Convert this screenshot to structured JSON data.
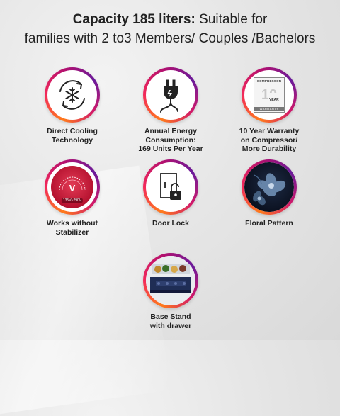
{
  "headline": {
    "bold": "Capacity 185 liters:",
    "rest": " Suitable for",
    "line2": "families with 2 to3 Members/ Couples /Bachelors"
  },
  "features": [
    {
      "icon": "snowflake-cycle-icon",
      "lines": [
        "Direct Cooling",
        "Technology"
      ]
    },
    {
      "icon": "power-plug-icon",
      "lines": [
        "Annual Energy",
        "Consumption:",
        "169 Units Per Year"
      ]
    },
    {
      "icon": "warranty-badge-icon",
      "lines": [
        "10 Year Warranty",
        "on Compressor/",
        "More Durability"
      ]
    },
    {
      "icon": "voltage-gauge-icon",
      "lines": [
        "Works without",
        "Stabilizer"
      ]
    },
    {
      "icon": "door-lock-icon",
      "lines": [
        "Door Lock"
      ]
    },
    {
      "icon": "floral-pattern-icon",
      "lines": [
        "Floral Pattern"
      ]
    },
    {
      "icon": "drawer-base-icon",
      "lines": [
        "Base Stand",
        "with drawer"
      ]
    }
  ],
  "warranty_badge": {
    "top": "COMPRESSOR",
    "number": "10",
    "unit": "YEAR",
    "bottom": "WARRANTY"
  },
  "gauge": {
    "symbol": "V",
    "range": "135V~290V"
  },
  "colors": {
    "ring_orange": "#ff7b1c",
    "ring_pink": "#f2295b",
    "ring_purple": "#6a1b9a",
    "gauge_red": "#b5122f"
  }
}
